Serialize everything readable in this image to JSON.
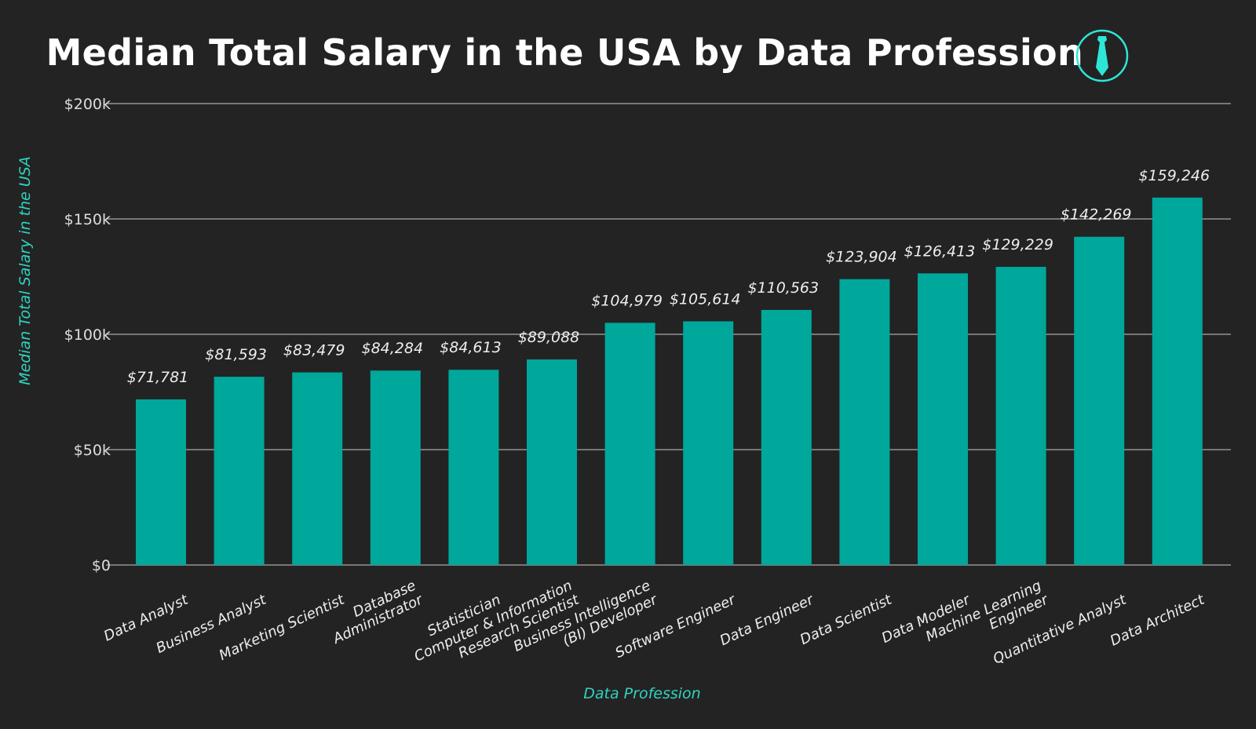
{
  "chart_data": {
    "type": "bar",
    "title": "Median Total Salary in the USA by Data Profession",
    "title_icon": "necktie-icon",
    "xlabel": "Data Profession",
    "ylabel": "Median Total Salary in the USA",
    "ylim": [
      0,
      200000
    ],
    "yticks": [
      {
        "value": 0,
        "label": "$0"
      },
      {
        "value": 50000,
        "label": "$50k"
      },
      {
        "value": 100000,
        "label": "$100k"
      },
      {
        "value": 150000,
        "label": "$150k"
      },
      {
        "value": 200000,
        "label": "$200k"
      }
    ],
    "grid": true,
    "categories": [
      [
        "Data Analyst"
      ],
      [
        "Business Analyst"
      ],
      [
        "Marketing Scientist"
      ],
      [
        "Database",
        "Administrator"
      ],
      [
        "Statistician"
      ],
      [
        "Computer & Information",
        "Research Scientist"
      ],
      [
        "Business Intelligence",
        "(BI) Developer"
      ],
      [
        "Software Engineer"
      ],
      [
        "Data Engineer"
      ],
      [
        "Data Scientist"
      ],
      [
        "Data Modeler"
      ],
      [
        "Machine Learning",
        "Engineer"
      ],
      [
        "Quantitative Analyst"
      ],
      [
        "Data Architect"
      ]
    ],
    "values": [
      71781,
      81593,
      83479,
      84284,
      84613,
      89088,
      104979,
      105614,
      110563,
      123904,
      126413,
      129229,
      142269,
      159246
    ],
    "data_labels": [
      "$71,781",
      "$81,593",
      "$83,479",
      "$84,284",
      "$84,613",
      "$89,088",
      "$104,979",
      "$105,614",
      "$110,563",
      "$123,904",
      "$126,413",
      "$129,229",
      "$142,269",
      "$159,246"
    ],
    "colors": {
      "bar": "#00a79b",
      "accent": "#2ee6d6",
      "background": "#232323",
      "grid": "#777777"
    }
  }
}
